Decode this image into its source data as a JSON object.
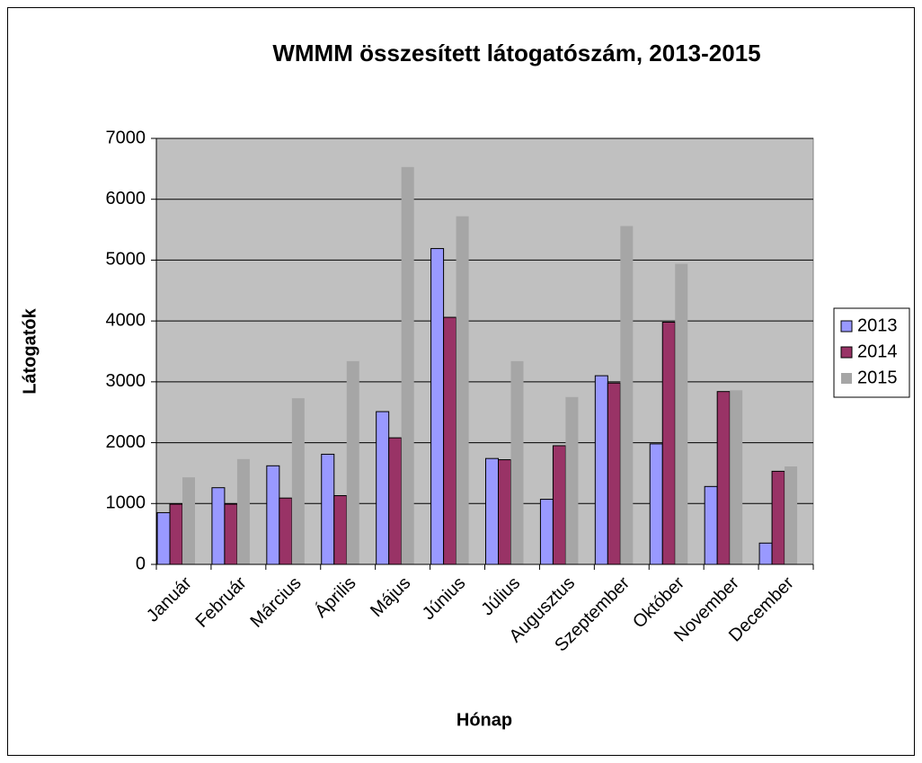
{
  "chart_data": {
    "type": "bar",
    "title": "WMMM összesített látogatószám, 2013-2015",
    "x_label": "Hónap",
    "y_label": "Látogatók",
    "categories": [
      "Január",
      "Február",
      "Március",
      "Április",
      "Május",
      "Június",
      "Július",
      "Augusztus",
      "Szeptember",
      "Október",
      "November",
      "December"
    ],
    "series": [
      {
        "name": "2013",
        "color": "#9999ff",
        "values": [
          850,
          1260,
          1620,
          1810,
          2510,
          5190,
          1740,
          1070,
          3100,
          1980,
          1280,
          350
        ]
      },
      {
        "name": "2014",
        "color": "#993366",
        "values": [
          990,
          990,
          1090,
          1130,
          2080,
          4060,
          1720,
          1950,
          2980,
          3980,
          2840,
          1530
        ]
      },
      {
        "name": "2015",
        "color": "#a6a6a6",
        "values": [
          1430,
          1730,
          2730,
          3340,
          6530,
          5720,
          3340,
          2750,
          5560,
          4940,
          2860,
          1610
        ]
      }
    ],
    "ylim": [
      0,
      7000
    ],
    "yticks": [
      0,
      1000,
      2000,
      3000,
      4000,
      5000,
      6000,
      7000
    ],
    "grid": true,
    "legend": "right"
  }
}
